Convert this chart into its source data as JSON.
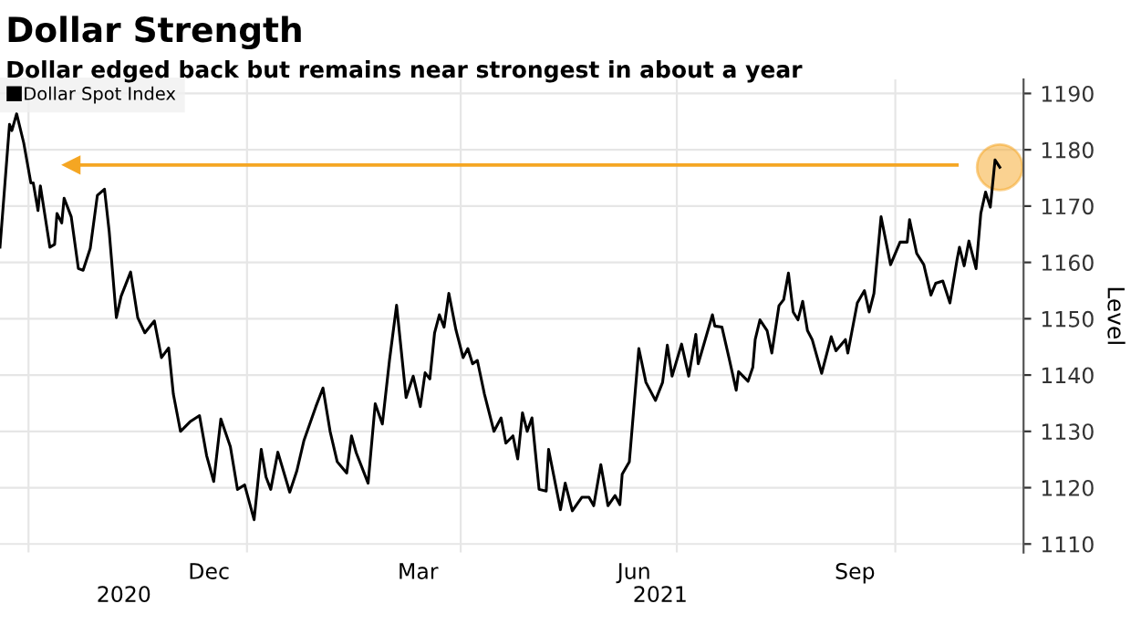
{
  "chart_data": {
    "type": "line",
    "title": "Dollar Strength",
    "subtitle": "Dollar edged back but remains near strongest in about a year",
    "ylabel": "Level",
    "x": [
      "2020-09-19",
      "2020-09-23",
      "2020-09-24",
      "2020-09-26",
      "2020-09-29",
      "2020-10-02",
      "2020-10-03",
      "2020-10-05",
      "2020-10-06",
      "2020-10-10",
      "2020-10-12",
      "2020-10-13",
      "2020-10-15",
      "2020-10-16",
      "2020-10-19",
      "2020-10-22",
      "2020-10-24",
      "2020-10-27",
      "2020-10-30",
      "2020-11-02",
      "2020-11-04",
      "2020-11-07",
      "2020-11-09",
      "2020-11-13",
      "2020-11-16",
      "2020-11-19",
      "2020-11-23",
      "2020-11-26",
      "2020-11-29",
      "2020-12-01",
      "2020-12-04",
      "2020-12-08",
      "2020-12-12",
      "2020-12-15",
      "2020-12-18",
      "2020-12-21",
      "2020-12-25",
      "2020-12-28",
      "2020-12-31",
      "2021-01-04",
      "2021-01-07",
      "2021-01-09",
      "2021-01-11",
      "2021-01-14",
      "2021-01-19",
      "2021-01-22",
      "2021-01-25",
      "2021-01-30",
      "2021-02-02",
      "2021-02-05",
      "2021-02-08",
      "2021-02-12",
      "2021-02-14",
      "2021-02-16",
      "2021-02-21",
      "2021-02-24",
      "2021-02-27",
      "2021-03-02",
      "2021-03-05",
      "2021-03-09",
      "2021-03-12",
      "2021-03-15",
      "2021-03-17",
      "2021-03-19",
      "2021-03-21",
      "2021-03-23",
      "2021-03-25",
      "2021-03-27",
      "2021-03-30",
      "2021-04-02",
      "2021-04-04",
      "2021-04-06",
      "2021-04-08",
      "2021-04-11",
      "2021-04-15",
      "2021-04-18",
      "2021-04-20",
      "2021-04-23",
      "2021-04-25",
      "2021-04-27",
      "2021-04-29",
      "2021-05-01",
      "2021-05-04",
      "2021-05-07",
      "2021-05-08",
      "2021-05-13",
      "2021-05-15",
      "2021-05-18",
      "2021-05-22",
      "2021-05-25",
      "2021-05-27",
      "2021-05-30",
      "2021-06-02",
      "2021-06-05",
      "2021-06-07",
      "2021-06-08",
      "2021-06-11",
      "2021-06-15",
      "2021-06-18",
      "2021-06-22",
      "2021-06-25",
      "2021-06-27",
      "2021-06-29",
      "2021-07-03",
      "2021-07-06",
      "2021-07-09",
      "2021-07-10",
      "2021-07-16",
      "2021-07-17",
      "2021-07-20",
      "2021-07-23",
      "2021-07-26",
      "2021-07-27",
      "2021-07-31",
      "2021-08-02",
      "2021-08-03",
      "2021-08-05",
      "2021-08-08",
      "2021-08-10",
      "2021-08-13",
      "2021-08-15",
      "2021-08-17",
      "2021-08-19",
      "2021-08-21",
      "2021-08-23",
      "2021-08-25",
      "2021-08-27",
      "2021-08-31",
      "2021-09-04",
      "2021-09-06",
      "2021-09-10",
      "2021-09-11",
      "2021-09-15",
      "2021-09-18",
      "2021-09-20",
      "2021-09-22",
      "2021-09-25",
      "2021-09-29",
      "2021-10-03",
      "2021-10-06",
      "2021-10-07",
      "2021-10-10",
      "2021-10-13",
      "2021-10-16",
      "2021-10-18",
      "2021-10-21",
      "2021-10-24",
      "2021-10-27",
      "2021-10-28",
      "2021-10-30",
      "2021-11-01",
      "2021-11-04",
      "2021-11-06",
      "2021-11-08",
      "2021-11-10",
      "2021-11-12",
      "2021-11-14"
    ],
    "series": [
      {
        "name": "Dollar Spot Index",
        "color": "#000000",
        "values": [
          1162.7,
          1184.5,
          1183.4,
          1186.4,
          1181.2,
          1174.1,
          1174.1,
          1169.2,
          1173.6,
          1162.7,
          1163.2,
          1168.7,
          1167,
          1171.4,
          1168.1,
          1158.9,
          1158.6,
          1162.5,
          1171.9,
          1173,
          1165.4,
          1150.2,
          1154,
          1158.3,
          1150.2,
          1147.5,
          1149.6,
          1143.1,
          1144.8,
          1136.6,
          1130,
          1131.7,
          1132.8,
          1125.7,
          1121.1,
          1132.2,
          1127.3,
          1119.7,
          1120.5,
          1114.3,
          1126.8,
          1121.9,
          1119.7,
          1126.3,
          1119.2,
          1123,
          1128.4,
          1134.4,
          1137.7,
          1130,
          1124.6,
          1122.6,
          1129.2,
          1126.2,
          1120.8,
          1134.9,
          1131.3,
          1142.6,
          1152.4,
          1136,
          1139.8,
          1134.4,
          1140.4,
          1139.3,
          1147.5,
          1150.7,
          1148.5,
          1154.5,
          1148,
          1143.1,
          1144.7,
          1142,
          1142.6,
          1136.6,
          1130,
          1132.4,
          1127.9,
          1129.2,
          1125.1,
          1133.3,
          1130,
          1132.4,
          1119.7,
          1119.4,
          1126.8,
          1116.1,
          1120.8,
          1115.9,
          1118.3,
          1118.3,
          1116.8,
          1124.1,
          1116.8,
          1118.6,
          1117,
          1122.4,
          1124.6,
          1144.7,
          1138.7,
          1135.5,
          1138.7,
          1145.3,
          1139.8,
          1145.5,
          1139.8,
          1147.2,
          1142,
          1150.7,
          1148.7,
          1148.5,
          1143,
          1137.3,
          1140.6,
          1138.9,
          1141.4,
          1146.3,
          1149.8,
          1147.9,
          1143.9,
          1152.3,
          1153.4,
          1158.1,
          1151.2,
          1149.8,
          1153.1,
          1147.9,
          1146.3,
          1140.3,
          1146.8,
          1144.3,
          1146.3,
          1143.9,
          1152.8,
          1155,
          1151.2,
          1154.5,
          1168.1,
          1159.6,
          1163.6,
          1163.6,
          1167.6,
          1161.6,
          1159.6,
          1154.2,
          1156.3,
          1156.7,
          1152.8,
          1160.5,
          1162.7,
          1159.4,
          1163.8,
          1158.9,
          1168.7,
          1172.5,
          1169.8,
          1178.2,
          1176.9
        ]
      }
    ],
    "xlim": [
      "2020-09-19",
      "2021-11-24"
    ],
    "xticks": [
      {
        "value": "2020-10-01",
        "label": null
      },
      {
        "value": "2021-01-01",
        "label": null
      },
      {
        "value": "2021-04-01",
        "label": null
      },
      {
        "value": "2021-07-01",
        "label": null
      },
      {
        "value": "2021-10-01",
        "label": null
      },
      {
        "value": "2020-12-16",
        "label": "Dec"
      },
      {
        "value": "2021-03-14",
        "label": "Mar"
      },
      {
        "value": "2021-06-13",
        "label": "Jun"
      },
      {
        "value": "2021-09-14",
        "label": "Sep"
      }
    ],
    "ylim": [
      1108.5,
      1192.5
    ],
    "yticks": [
      1110,
      1120,
      1130,
      1140,
      1150,
      1160,
      1170,
      1180,
      1190
    ],
    "ref_lines": [
      {
        "axis": "y",
        "value": 1177.3,
        "color": "#f5a623"
      }
    ],
    "annotations": [
      "2020",
      "2021"
    ],
    "grid": true,
    "legend": "top left"
  }
}
